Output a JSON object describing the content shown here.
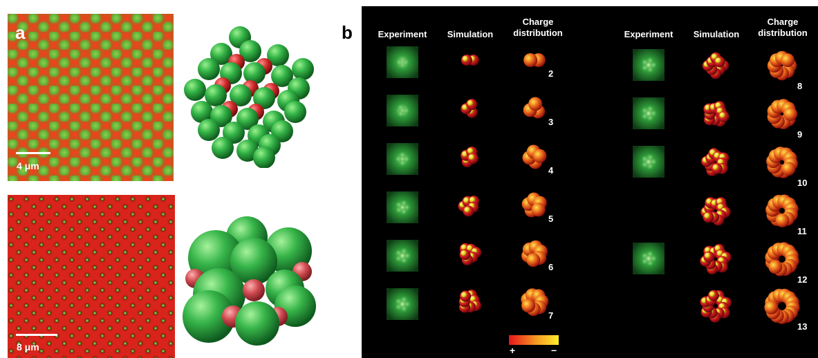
{
  "panel_a": {
    "label": "a",
    "scale_top": "4 μm",
    "scale_bottom": "8 μm"
  },
  "panel_b": {
    "label": "b",
    "headers": {
      "experiment": "Experiment",
      "simulation": "Simulation",
      "charge": "Charge distribution"
    },
    "left_counts": [
      "2",
      "3",
      "4",
      "5",
      "6",
      "7"
    ],
    "right_counts": [
      "8",
      "9",
      "10",
      "11",
      "12",
      "13"
    ],
    "colorbar": {
      "plus": "+",
      "minus": "−",
      "colors": [
        "#e8141c",
        "#f59a22",
        "#ffee2e"
      ]
    }
  },
  "colors": {
    "green": "#2faa3c",
    "red": "#e0231e",
    "yellow": "#f2e32b",
    "background": "#000000"
  }
}
